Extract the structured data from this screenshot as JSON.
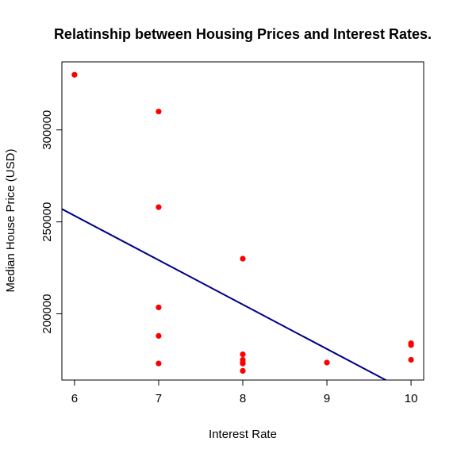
{
  "chart_data": {
    "type": "scatter",
    "title": "Relatinship between Housing Prices and Interest Rates.",
    "xlabel": "Interest Rate",
    "ylabel": "Median House Price (USD)",
    "xlim": [
      5.85,
      10.15
    ],
    "ylim": [
      164000,
      337000
    ],
    "x_ticks": [
      6,
      7,
      8,
      9,
      10
    ],
    "x_tick_labels": [
      "6",
      "7",
      "8",
      "9",
      "10"
    ],
    "y_ticks": [
      200000,
      250000,
      300000
    ],
    "y_tick_labels": [
      "200000",
      "250000",
      "300000"
    ],
    "grid": false,
    "legend": "none",
    "series": [
      {
        "x": [
          6,
          7,
          7,
          7,
          7,
          7,
          8,
          8,
          8,
          8,
          8,
          8,
          9,
          10,
          10,
          10
        ],
        "y": [
          330000,
          310000,
          258000,
          203500,
          188000,
          173000,
          230000,
          178000,
          175000,
          173500,
          173000,
          169000,
          173500,
          184000,
          183000,
          175000
        ]
      }
    ],
    "regression_line": {
      "x": [
        5.85,
        9.72
      ],
      "y": [
        257000,
        163500
      ]
    },
    "colors": {
      "points": "#ff0000",
      "line": "#00008b",
      "axes": "#000000"
    }
  }
}
